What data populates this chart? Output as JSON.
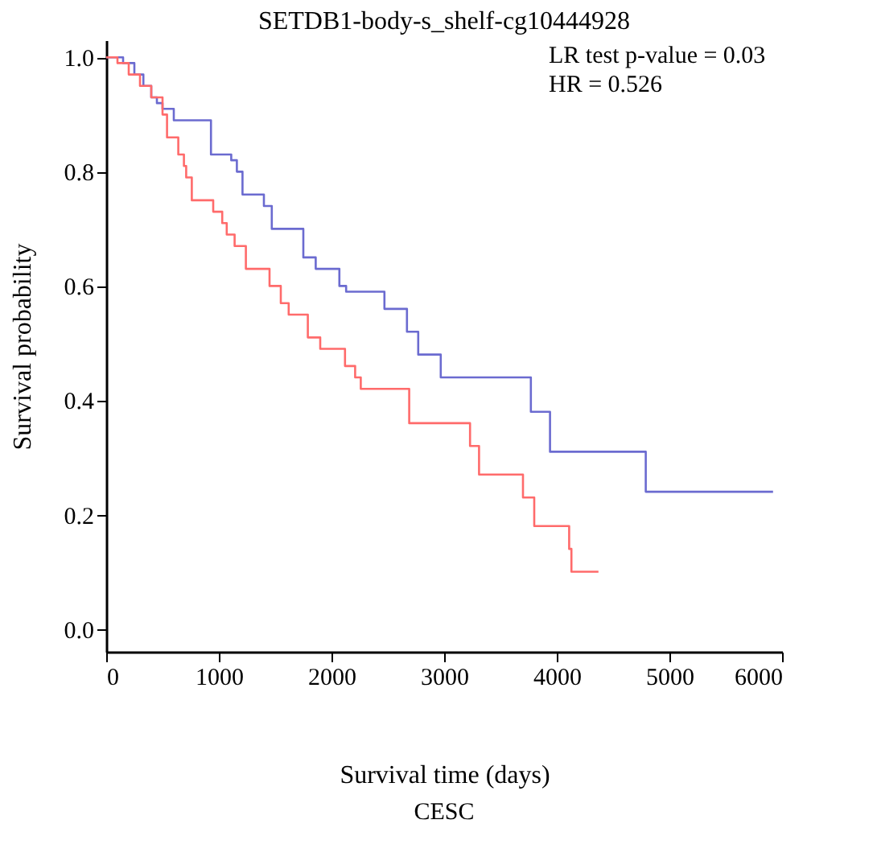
{
  "chart_data": {
    "type": "step",
    "title": "SETDB1-body-s_shelf-cg10444928",
    "xlabel": "Survival time (days)",
    "ylabel": "Survival probability",
    "annotations": [
      "LR test p-value = 0.03",
      "HR = 0.526",
      "CESC"
    ],
    "xlim": [
      0,
      6000
    ],
    "xticks": [
      0,
      1000,
      2000,
      3000,
      4000,
      5000,
      6000
    ],
    "ylim": [
      -0.04,
      1.03
    ],
    "yticks": [
      {
        "value": 0,
        "label": "0.0"
      },
      {
        "value": 0.2,
        "label": "0.2"
      },
      {
        "value": 0.4,
        "label": "0.4"
      },
      {
        "value": 0.6,
        "label": "0.6"
      },
      {
        "value": 0.8,
        "label": "0.8"
      },
      {
        "value": 1,
        "label": "1.0"
      }
    ],
    "grid": false,
    "legend": false,
    "marker": "none",
    "line_style": "solid",
    "series": [
      {
        "color": "#6b6bd0",
        "x": [
          0,
          150,
          250,
          330,
          400,
          450,
          500,
          600,
          930,
          1110,
          1160,
          1210,
          1400,
          1470,
          1750,
          1860,
          2070,
          2130,
          2470,
          2670,
          2770,
          2970,
          3770,
          3940,
          4790,
          5920
        ],
        "values": [
          1.0,
          0.99,
          0.97,
          0.95,
          0.93,
          0.92,
          0.91,
          0.89,
          0.83,
          0.82,
          0.8,
          0.76,
          0.74,
          0.7,
          0.65,
          0.63,
          0.6,
          0.59,
          0.56,
          0.52,
          0.48,
          0.44,
          0.38,
          0.31,
          0.24,
          0.24
        ]
      },
      {
        "color": "#ff6b6b",
        "x": [
          0,
          100,
          200,
          300,
          400,
          500,
          540,
          640,
          690,
          710,
          760,
          950,
          1030,
          1070,
          1140,
          1240,
          1450,
          1550,
          1620,
          1790,
          1900,
          2120,
          2210,
          2260,
          2690,
          3230,
          3310,
          3700,
          3800,
          4110,
          4130,
          4370
        ],
        "values": [
          1.0,
          0.99,
          0.97,
          0.95,
          0.93,
          0.9,
          0.86,
          0.83,
          0.81,
          0.79,
          0.75,
          0.73,
          0.71,
          0.69,
          0.67,
          0.63,
          0.6,
          0.57,
          0.55,
          0.51,
          0.49,
          0.46,
          0.44,
          0.42,
          0.36,
          0.32,
          0.27,
          0.23,
          0.18,
          0.14,
          0.1,
          0.1
        ]
      }
    ]
  }
}
